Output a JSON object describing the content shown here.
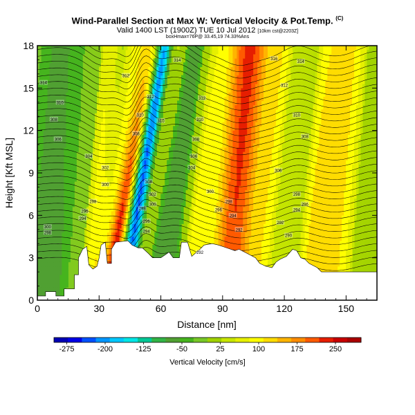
{
  "header": {
    "title": "Wind-Parallel Section at Max W: Vertical Velocity & Pot.Temp.",
    "title_mark": "(C)",
    "subtitle": "Valid 1400 LST (1900Z) TUE 10 Jul 2012",
    "subtitle_small": "[10km cst@2203Z]",
    "subtitle2": "boxHmax=76P@ 33.45,19 74.33%Ans"
  },
  "chart_data": {
    "type": "heatmap",
    "title": "Wind-Parallel Section at Max W: Vertical Velocity & Pot.Temp.",
    "xlabel": "Distance [nm]",
    "ylabel": "Height [Kft MSL]",
    "xlim": [
      0,
      165
    ],
    "ylim": [
      0,
      18
    ],
    "x_ticks": [
      0,
      30,
      60,
      90,
      120,
      150
    ],
    "y_ticks": [
      0,
      3,
      6,
      9,
      12,
      15,
      18
    ],
    "colorbar": {
      "label": "Vertical Velocity [cm/s]",
      "min": -300,
      "max": 300,
      "tick_values": [
        -275,
        -200,
        -125,
        -50,
        25,
        100,
        175,
        250
      ],
      "colors": [
        "#0000b4",
        "#0000e6",
        "#0050ff",
        "#0096ff",
        "#00c8ff",
        "#00e6e6",
        "#00c896",
        "#32b446",
        "#50a032",
        "#46b41e",
        "#78c828",
        "#a0d200",
        "#c8e600",
        "#e6f000",
        "#ffff00",
        "#ffdc00",
        "#ffb400",
        "#ff8c00",
        "#ff5a00",
        "#e61e00",
        "#c80000",
        "#aa0000"
      ]
    },
    "terrain": [
      [
        0,
        0.3
      ],
      [
        4,
        0.3
      ],
      [
        4,
        0.6
      ],
      [
        9,
        0.6
      ],
      [
        9,
        0.3
      ],
      [
        13,
        0.3
      ],
      [
        13,
        0.8
      ],
      [
        18,
        0.8
      ],
      [
        18,
        1.8
      ],
      [
        20,
        1.8
      ],
      [
        20,
        3.0
      ],
      [
        22,
        3.6
      ],
      [
        24,
        3.8
      ],
      [
        25,
        2.5
      ],
      [
        27,
        2.2
      ],
      [
        29,
        2.4
      ],
      [
        30,
        3.0
      ],
      [
        31,
        3.9
      ],
      [
        33,
        4.1
      ],
      [
        34,
        2.6
      ],
      [
        36,
        2.6
      ],
      [
        36,
        3.6
      ],
      [
        38,
        4.1
      ],
      [
        44,
        4.2
      ],
      [
        46,
        3.9
      ],
      [
        49,
        3.7
      ],
      [
        51,
        3.7
      ],
      [
        54,
        3.3
      ],
      [
        56,
        3.0
      ],
      [
        60,
        3.0
      ],
      [
        62,
        3.2
      ],
      [
        64,
        3.4
      ],
      [
        66,
        3.0
      ],
      [
        69,
        3.0
      ],
      [
        70,
        4.1
      ],
      [
        73,
        4.1
      ],
      [
        75,
        3.1
      ],
      [
        79,
        3.6
      ],
      [
        81,
        3.9
      ],
      [
        85,
        4.0
      ],
      [
        88,
        3.9
      ],
      [
        92,
        3.7
      ],
      [
        96,
        3.5
      ],
      [
        98,
        3.6
      ],
      [
        102,
        3.3
      ],
      [
        106,
        3.0
      ],
      [
        108,
        2.6
      ],
      [
        111,
        2.4
      ],
      [
        114,
        2.3
      ],
      [
        116,
        2.7
      ],
      [
        118,
        2.9
      ],
      [
        121,
        3.1
      ],
      [
        124,
        3.6
      ],
      [
        126,
        3.5
      ],
      [
        128,
        3.0
      ],
      [
        130,
        2.9
      ],
      [
        132,
        2.6
      ],
      [
        136,
        2.3
      ],
      [
        138,
        2.0
      ],
      [
        144,
        2.0
      ],
      [
        147,
        2.0
      ],
      [
        152,
        2.0
      ],
      [
        155,
        2.0
      ],
      [
        165,
        2.0
      ]
    ],
    "contour_labels": [
      {
        "x": 3,
        "y": 15.4,
        "label": "314"
      },
      {
        "x": 11,
        "y": 14.0,
        "label": "310"
      },
      {
        "x": 8,
        "y": 12.8,
        "label": "308"
      },
      {
        "x": 10,
        "y": 11.4,
        "label": "306"
      },
      {
        "x": 25,
        "y": 10.2,
        "label": "304"
      },
      {
        "x": 43,
        "y": 15.9,
        "label": "312"
      },
      {
        "x": 55,
        "y": 14.4,
        "label": "312"
      },
      {
        "x": 50,
        "y": 13.1,
        "label": "310"
      },
      {
        "x": 48,
        "y": 11.8,
        "label": "308"
      },
      {
        "x": 60,
        "y": 12.7,
        "label": "310"
      },
      {
        "x": 68,
        "y": 17.0,
        "label": "314"
      },
      {
        "x": 80,
        "y": 14.3,
        "label": "312"
      },
      {
        "x": 79,
        "y": 12.8,
        "label": "310"
      },
      {
        "x": 77,
        "y": 11.4,
        "label": "308"
      },
      {
        "x": 76,
        "y": 10.2,
        "label": "306"
      },
      {
        "x": 75,
        "y": 9.4,
        "label": "304"
      },
      {
        "x": 120,
        "y": 15.2,
        "label": "312"
      },
      {
        "x": 126,
        "y": 13.1,
        "label": "310"
      },
      {
        "x": 130,
        "y": 11.6,
        "label": "308"
      },
      {
        "x": 117,
        "y": 9.2,
        "label": "306"
      },
      {
        "x": 128,
        "y": 16.9,
        "label": "314"
      },
      {
        "x": 115,
        "y": 17.1,
        "label": "316"
      },
      {
        "x": 33,
        "y": 9.4,
        "label": "302"
      },
      {
        "x": 33,
        "y": 8.2,
        "label": "300"
      },
      {
        "x": 27,
        "y": 7.0,
        "label": "298"
      },
      {
        "x": 23,
        "y": 6.3,
        "label": "296"
      },
      {
        "x": 22,
        "y": 5.8,
        "label": "294"
      },
      {
        "x": 5,
        "y": 5.2,
        "label": "300"
      },
      {
        "x": 5,
        "y": 4.8,
        "label": "298"
      },
      {
        "x": 54,
        "y": 8.4,
        "label": "304"
      },
      {
        "x": 56,
        "y": 7.5,
        "label": "302"
      },
      {
        "x": 56,
        "y": 6.8,
        "label": "300"
      },
      {
        "x": 51,
        "y": 6.5,
        "label": "298"
      },
      {
        "x": 53,
        "y": 5.6,
        "label": "296"
      },
      {
        "x": 53,
        "y": 4.9,
        "label": "294"
      },
      {
        "x": 84,
        "y": 7.7,
        "label": "300"
      },
      {
        "x": 93,
        "y": 7.0,
        "label": "298"
      },
      {
        "x": 88,
        "y": 6.4,
        "label": "296"
      },
      {
        "x": 95,
        "y": 6.0,
        "label": "294"
      },
      {
        "x": 98,
        "y": 5.0,
        "label": "292"
      },
      {
        "x": 126,
        "y": 7.5,
        "label": "298"
      },
      {
        "x": 130,
        "y": 6.8,
        "label": "296"
      },
      {
        "x": 126,
        "y": 6.4,
        "label": "294"
      },
      {
        "x": 118,
        "y": 5.5,
        "label": "292"
      },
      {
        "x": 122,
        "y": 4.6,
        "label": "290"
      },
      {
        "x": 79,
        "y": 3.4,
        "label": "292"
      }
    ]
  }
}
